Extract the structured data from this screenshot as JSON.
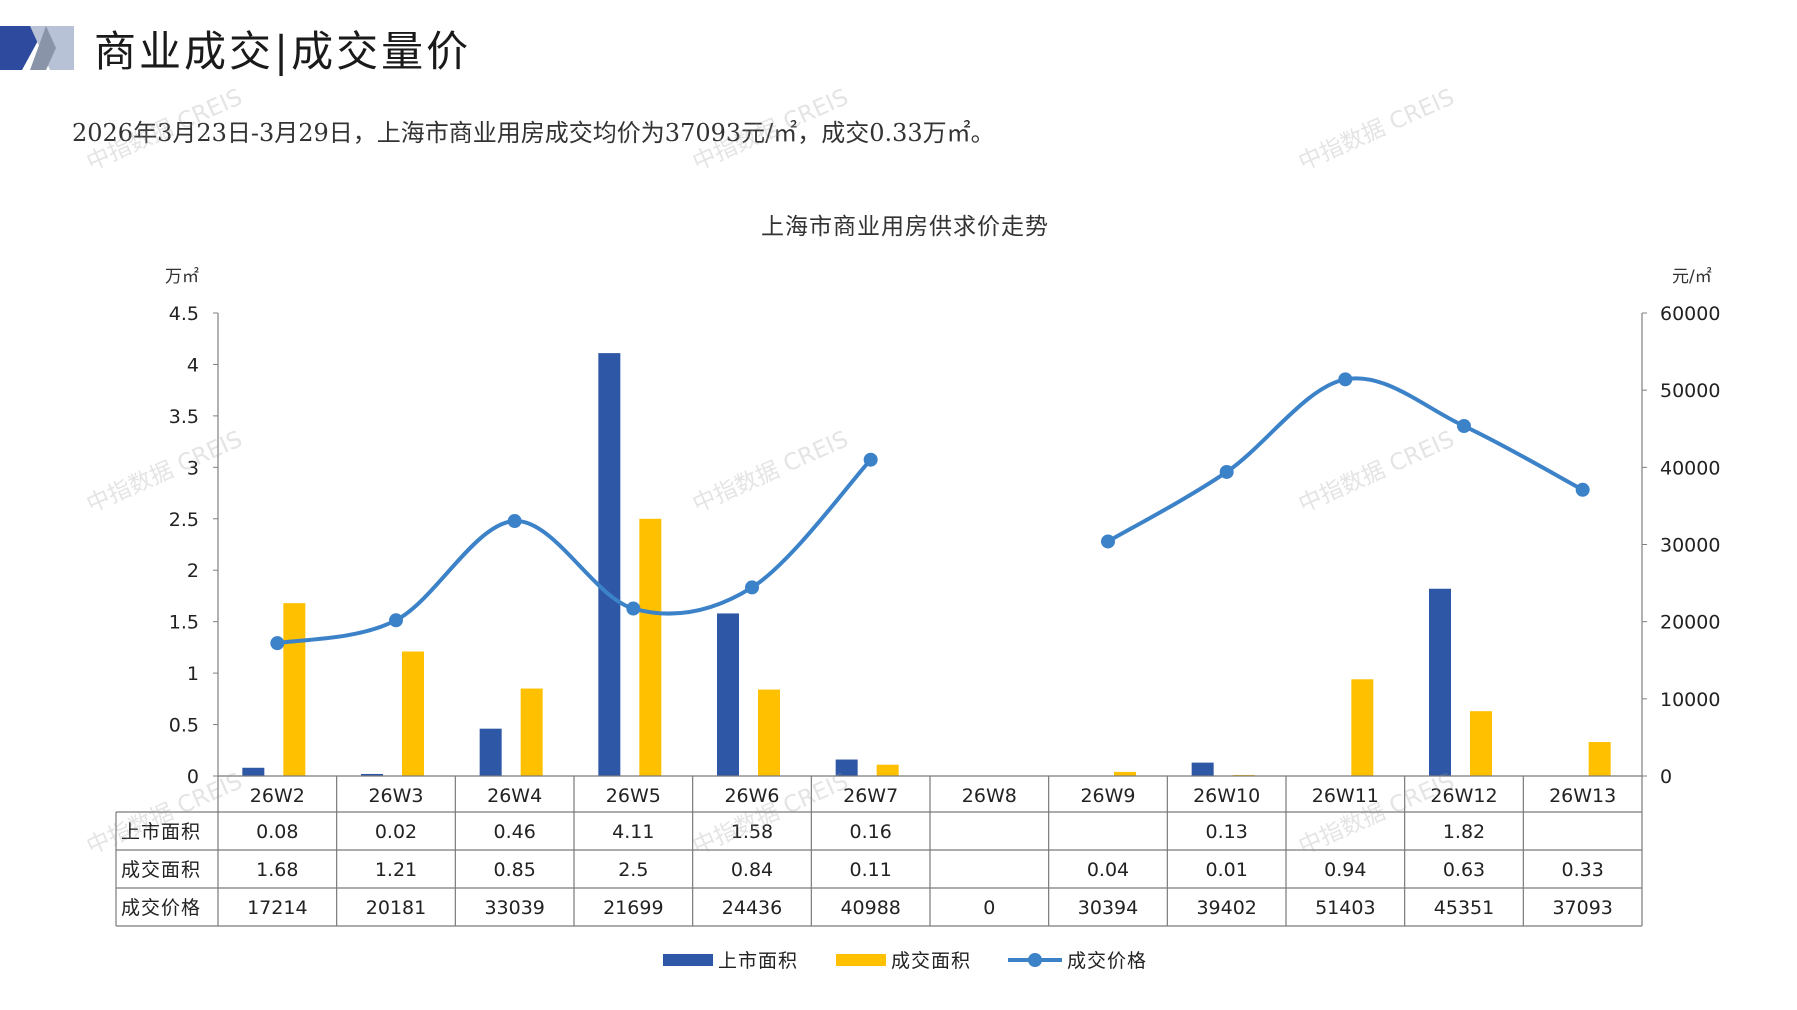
{
  "header": {
    "title": "商业成交|成交量价",
    "summary": "2026年3月23日-3月29日，上海市商业用房成交均价为37093元/㎡，成交0.33万㎡。"
  },
  "watermark": "中指数据 CREIS",
  "colors": {
    "supply": "#2e57a6",
    "deal": "#ffc000",
    "price": "#3c82c8",
    "header_dark": "#2e4a9e",
    "header_light": "#b8c2d6"
  },
  "chart_data": {
    "type": "bar",
    "title": "上海市商业用房供求价走势",
    "y_left_unit": "万㎡",
    "y_right_unit": "元/㎡",
    "y_left_range": [
      0,
      4.5
    ],
    "y_right_range": [
      0,
      60000
    ],
    "y_left_ticks": [
      "0",
      "0.5",
      "1",
      "1.5",
      "2",
      "2.5",
      "3",
      "3.5",
      "4",
      "4.5"
    ],
    "y_right_ticks": [
      "0",
      "10000",
      "20000",
      "30000",
      "40000",
      "50000",
      "60000"
    ],
    "categories": [
      "26W2",
      "26W3",
      "26W4",
      "26W5",
      "26W6",
      "26W7",
      "26W8",
      "26W9",
      "26W10",
      "26W11",
      "26W12",
      "26W13"
    ],
    "series": [
      {
        "name": "上市面积",
        "kind": "bar",
        "axis": "left",
        "color": "#2e57a6",
        "values": [
          0.08,
          0.02,
          0.46,
          4.11,
          1.58,
          0.16,
          null,
          null,
          0.13,
          null,
          1.82,
          null
        ],
        "labels": [
          "0.08",
          "0.02",
          "0.46",
          "4.11",
          "1.58",
          "0.16",
          "",
          "",
          "0.13",
          "",
          "1.82",
          ""
        ]
      },
      {
        "name": "成交面积",
        "kind": "bar",
        "axis": "left",
        "color": "#ffc000",
        "values": [
          1.68,
          1.21,
          0.85,
          2.5,
          0.84,
          0.11,
          null,
          0.04,
          0.01,
          0.94,
          0.63,
          0.33
        ],
        "labels": [
          "1.68",
          "1.21",
          "0.85",
          "2.5",
          "0.84",
          "0.11",
          "",
          "0.04",
          "0.01",
          "0.94",
          "0.63",
          "0.33"
        ]
      },
      {
        "name": "成交价格",
        "kind": "line",
        "axis": "right",
        "color": "#3c82c8",
        "values": [
          17214,
          20181,
          33039,
          21699,
          24436,
          40988,
          0,
          30394,
          39402,
          51403,
          45351,
          37093
        ],
        "labels": [
          "17214",
          "20181",
          "33039",
          "21699",
          "24436",
          "40988",
          "0",
          "30394",
          "39402",
          "51403",
          "45351",
          "37093"
        ]
      }
    ],
    "legend": "bottom"
  }
}
